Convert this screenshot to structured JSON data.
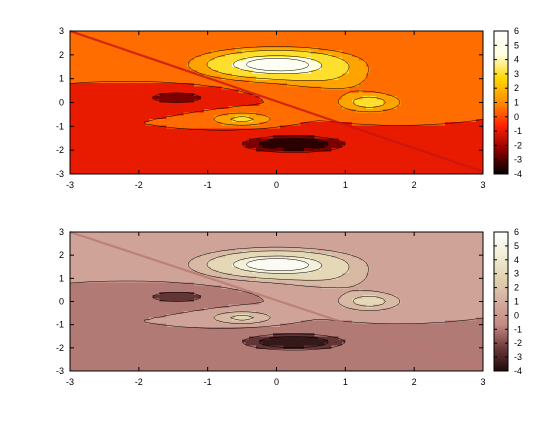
{
  "chart_data": [
    {
      "type": "heatmap",
      "title": "",
      "xlabel": "",
      "ylabel": "",
      "xlim": [
        -3,
        3
      ],
      "ylim": [
        -3,
        3
      ],
      "x_ticks": [
        -3,
        -2,
        -1,
        0,
        1,
        2,
        3
      ],
      "y_ticks": [
        -3,
        -2,
        -1,
        0,
        1,
        2,
        3
      ],
      "colorbar": {
        "range": [
          -4,
          6
        ],
        "ticks": [
          -4,
          -3,
          -2,
          -1,
          0,
          1,
          2,
          3,
          4,
          5,
          6
        ],
        "palette": "hot",
        "stops": [
          "#000000",
          "#8b0000",
          "#ff2000",
          "#ff8c00",
          "#ffd700",
          "#ffffe0",
          "#ffffff"
        ]
      },
      "contour_levels": [
        -3,
        -2,
        0,
        1,
        2,
        4,
        5
      ],
      "features": [
        {
          "kind": "peak",
          "center": [
            0.0,
            1.6
          ],
          "value": 6
        },
        {
          "kind": "peak",
          "center": [
            1.35,
            0.0
          ],
          "value": 2.5
        },
        {
          "kind": "peak",
          "center": [
            -0.5,
            -0.7
          ],
          "value": 2
        },
        {
          "kind": "trough",
          "center": [
            0.25,
            -1.75
          ],
          "value": -4
        },
        {
          "kind": "trough",
          "center": [
            -1.45,
            0.2
          ],
          "value": -2.8
        }
      ],
      "diagonal_line": {
        "from": [
          -3,
          3
        ],
        "to": [
          3,
          -2.9
        ]
      }
    },
    {
      "type": "heatmap",
      "title": "",
      "xlabel": "",
      "ylabel": "",
      "xlim": [
        -3,
        3
      ],
      "ylim": [
        -3,
        3
      ],
      "x_ticks": [
        -3,
        -2,
        -1,
        0,
        1,
        2,
        3
      ],
      "y_ticks": [
        -3,
        -2,
        -1,
        0,
        1,
        2,
        3
      ],
      "colorbar": {
        "range": [
          -4,
          6
        ],
        "ticks": [
          -4,
          -3,
          -2,
          -1,
          0,
          1,
          2,
          3,
          4,
          5,
          6
        ],
        "palette": "pink",
        "stops": [
          "#1e0a0a",
          "#6b3a3a",
          "#c48a84",
          "#d3aea0",
          "#e0d2ad",
          "#f2eed8",
          "#ffffff"
        ]
      },
      "contour_levels": [
        -3,
        -2,
        0,
        1,
        2,
        4,
        5
      ],
      "features": [
        {
          "kind": "peak",
          "center": [
            0.0,
            1.6
          ],
          "value": 6
        },
        {
          "kind": "peak",
          "center": [
            1.35,
            0.0
          ],
          "value": 2.5
        },
        {
          "kind": "peak",
          "center": [
            -0.5,
            -0.7
          ],
          "value": 2
        },
        {
          "kind": "trough",
          "center": [
            0.25,
            -1.75
          ],
          "value": -4
        },
        {
          "kind": "trough",
          "center": [
            -1.45,
            0.2
          ],
          "value": -2.8
        }
      ],
      "diagonal_line": {
        "from": [
          -3,
          3
        ],
        "to": [
          3,
          -2.9
        ]
      }
    }
  ]
}
